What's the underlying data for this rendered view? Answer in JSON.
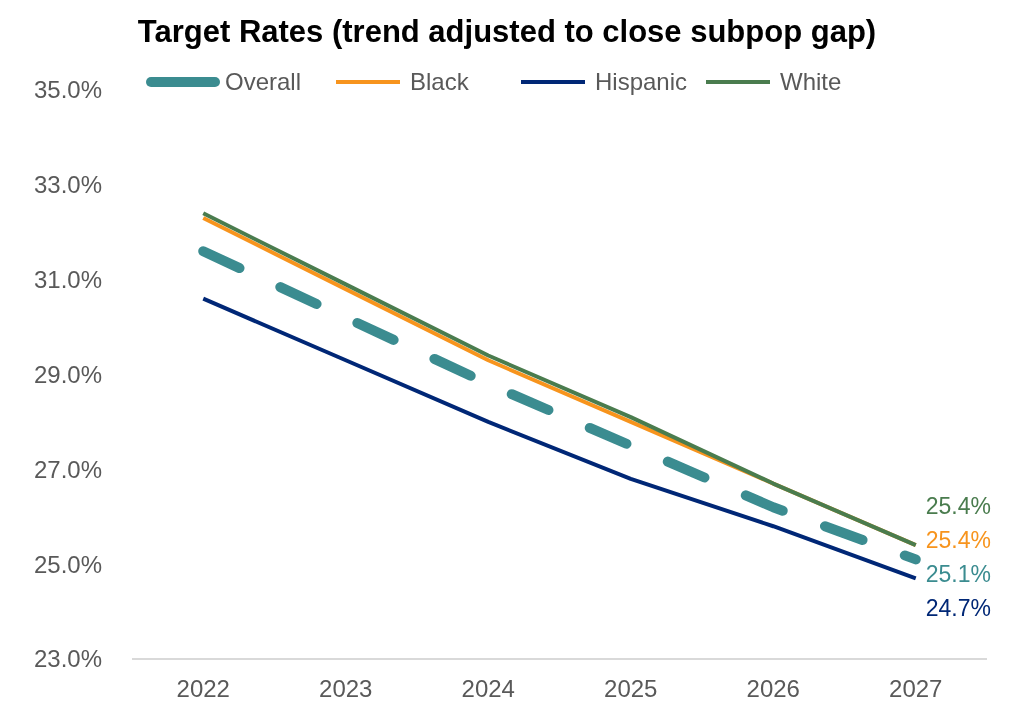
{
  "chart_data": {
    "type": "line",
    "title": "Target Rates (trend adjusted to close subpop gap)",
    "categories": [
      "2022",
      "2023",
      "2024",
      "2025",
      "2026",
      "2027"
    ],
    "ylim": [
      23,
      35
    ],
    "yticks": [
      {
        "value": 23,
        "label": "23.0%"
      },
      {
        "value": 25,
        "label": "25.0%"
      },
      {
        "value": 27,
        "label": "27.0%"
      },
      {
        "value": 29,
        "label": "29.0%"
      },
      {
        "value": 31,
        "label": "31.0%"
      },
      {
        "value": 33,
        "label": "33.0%"
      },
      {
        "value": 35,
        "label": "35.0%"
      }
    ],
    "grid": false,
    "legend": "top",
    "series": [
      {
        "name": "Overall",
        "color": "#3b8c90",
        "line_style": "dashed",
        "values": [
          31.6,
          30.2,
          28.8,
          27.5,
          26.2,
          25.1
        ],
        "value_labels": [
          null,
          null,
          null,
          null,
          null,
          "25.1%"
        ]
      },
      {
        "name": "Black",
        "color": "#f7941d",
        "line_style": "solid",
        "values": [
          32.3,
          30.8,
          29.3,
          28.0,
          26.7,
          25.4
        ],
        "value_labels": [
          null,
          null,
          null,
          null,
          null,
          "25.4%"
        ]
      },
      {
        "name": "Hispanic",
        "color": "#002776",
        "line_style": "solid",
        "values": [
          30.6,
          29.3,
          28.0,
          26.8,
          25.8,
          24.7
        ],
        "value_labels": [
          null,
          null,
          null,
          null,
          null,
          "24.7%"
        ]
      },
      {
        "name": "White",
        "color": "#4a7c4e",
        "line_style": "solid",
        "values": [
          32.4,
          30.9,
          29.4,
          28.1,
          26.7,
          25.4
        ],
        "value_labels": [
          null,
          null,
          null,
          null,
          null,
          "25.4%"
        ]
      }
    ]
  }
}
